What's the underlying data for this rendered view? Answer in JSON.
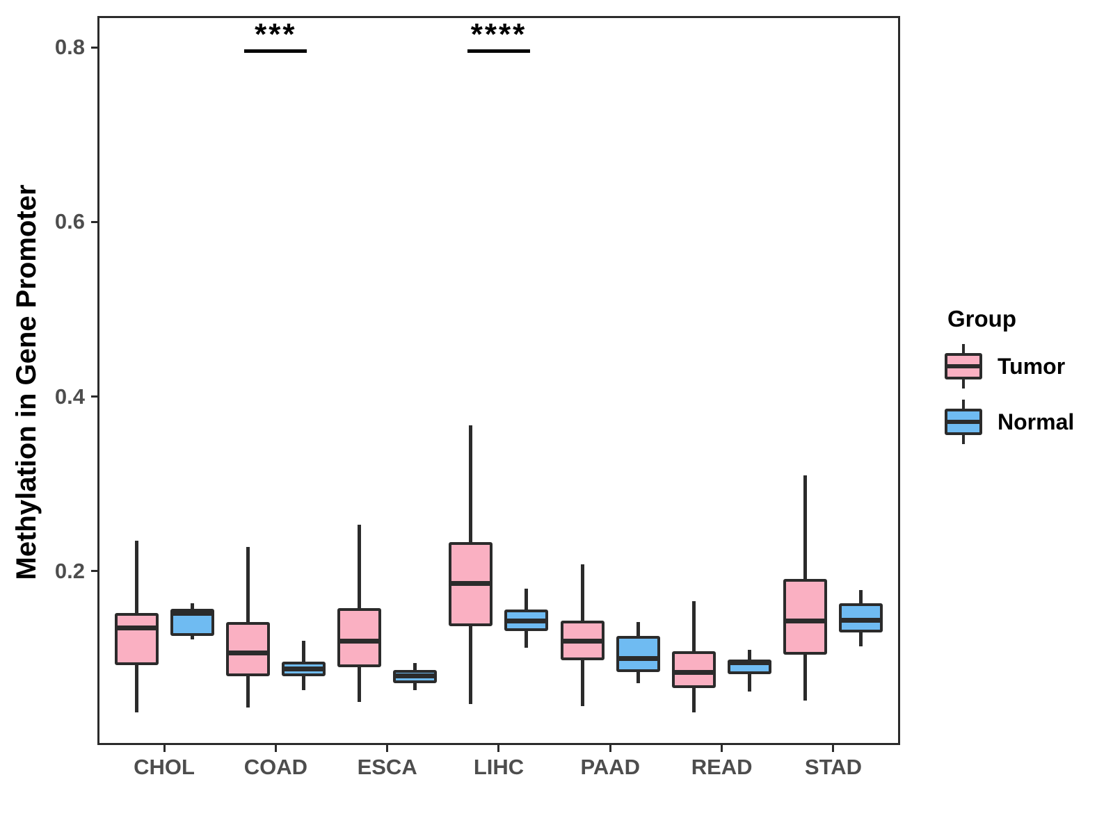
{
  "figure": {
    "y_axis": {
      "title": "Methylation in Gene Promoter",
      "tick_labels": [
        "0.2",
        "0.4",
        "0.6",
        "0.8"
      ]
    },
    "x_axis": {
      "tick_labels": [
        "CHOL",
        "COAD",
        "ESCA",
        "LIHC",
        "PAAD",
        "READ",
        "STAD"
      ]
    },
    "legend": {
      "title": "Group",
      "items": [
        {
          "label": "Tumor",
          "color": "#FAB0C2"
        },
        {
          "label": "Normal",
          "color": "#6FBBF2"
        }
      ]
    },
    "significance": [
      {
        "category": "COAD",
        "label": "***"
      },
      {
        "category": "LIHC",
        "label": "****"
      }
    ]
  },
  "chart_data": {
    "type": "boxplot",
    "title": "",
    "xlabel": "",
    "ylabel": "Methylation in Gene Promoter",
    "ylim": [
      0,
      0.835
    ],
    "yticks": [
      0.2,
      0.4,
      0.6,
      0.8
    ],
    "grid": false,
    "legend_position": "right",
    "categories": [
      "CHOL",
      "COAD",
      "ESCA",
      "LIHC",
      "PAAD",
      "READ",
      "STAD"
    ],
    "series": [
      {
        "name": "Tumor",
        "color": "#FAB0C2",
        "boxes": [
          {
            "category": "CHOL",
            "whisker_low": 0.038,
            "q1": 0.092,
            "median": 0.135,
            "q3": 0.152,
            "whisker_high": 0.235
          },
          {
            "category": "COAD",
            "whisker_low": 0.044,
            "q1": 0.08,
            "median": 0.106,
            "q3": 0.142,
            "whisker_high": 0.228
          },
          {
            "category": "ESCA",
            "whisker_low": 0.05,
            "q1": 0.09,
            "median": 0.12,
            "q3": 0.158,
            "whisker_high": 0.253
          },
          {
            "category": "LIHC",
            "whisker_low": 0.048,
            "q1": 0.137,
            "median": 0.186,
            "q3": 0.233,
            "whisker_high": 0.367
          },
          {
            "category": "PAAD",
            "whisker_low": 0.045,
            "q1": 0.098,
            "median": 0.12,
            "q3": 0.143,
            "whisker_high": 0.208
          },
          {
            "category": "READ",
            "whisker_low": 0.038,
            "q1": 0.066,
            "median": 0.084,
            "q3": 0.108,
            "whisker_high": 0.166
          },
          {
            "category": "STAD",
            "whisker_low": 0.052,
            "q1": 0.104,
            "median": 0.143,
            "q3": 0.191,
            "whisker_high": 0.31
          }
        ]
      },
      {
        "name": "Normal",
        "color": "#6FBBF2",
        "boxes": [
          {
            "category": "CHOL",
            "whisker_low": 0.122,
            "q1": 0.126,
            "median": 0.152,
            "q3": 0.157,
            "whisker_high": 0.163
          },
          {
            "category": "COAD",
            "whisker_low": 0.064,
            "q1": 0.08,
            "median": 0.088,
            "q3": 0.096,
            "whisker_high": 0.12
          },
          {
            "category": "ESCA",
            "whisker_low": 0.064,
            "q1": 0.072,
            "median": 0.08,
            "q3": 0.087,
            "whisker_high": 0.095
          },
          {
            "category": "LIHC",
            "whisker_low": 0.112,
            "q1": 0.131,
            "median": 0.143,
            "q3": 0.156,
            "whisker_high": 0.18
          },
          {
            "category": "PAAD",
            "whisker_low": 0.072,
            "q1": 0.084,
            "median": 0.1,
            "q3": 0.126,
            "whisker_high": 0.142
          },
          {
            "category": "READ",
            "whisker_low": 0.062,
            "q1": 0.082,
            "median": 0.095,
            "q3": 0.099,
            "whisker_high": 0.11
          },
          {
            "category": "STAD",
            "whisker_low": 0.114,
            "q1": 0.13,
            "median": 0.144,
            "q3": 0.163,
            "whisker_high": 0.178
          }
        ]
      }
    ],
    "annotations": [
      {
        "category": "COAD",
        "label": "***"
      },
      {
        "category": "LIHC",
        "label": "****"
      }
    ]
  }
}
